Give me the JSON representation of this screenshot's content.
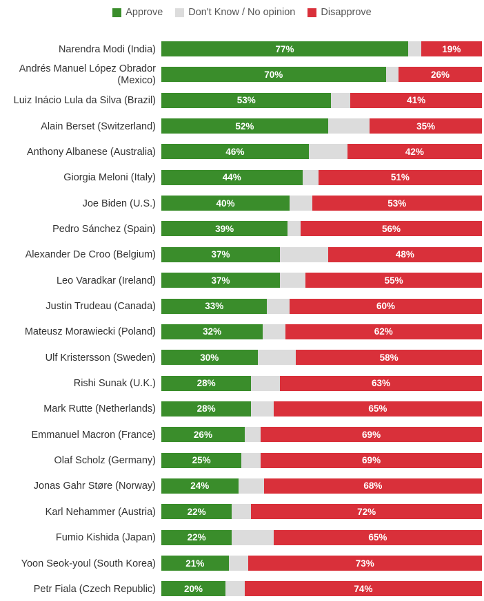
{
  "legend": [
    {
      "label": "Approve",
      "color": "#3a8d2b"
    },
    {
      "label": "Don't Know / No opinion",
      "color": "#dcdcdc"
    },
    {
      "label": "Disapprove",
      "color": "#d9303a"
    }
  ],
  "chart_data": {
    "type": "bar",
    "orientation": "horizontal",
    "stacked": true,
    "title": "",
    "xlabel": "",
    "ylabel": "",
    "xlim": [
      0,
      100
    ],
    "legend_position": "top-center",
    "categories": [
      "Narendra Modi (India)",
      "Andrés Manuel López Obrador (Mexico)",
      "Luiz Inácio Lula da Silva (Brazil)",
      "Alain Berset (Switzerland)",
      "Anthony Albanese (Australia)",
      "Giorgia Meloni (Italy)",
      "Joe Biden (U.S.)",
      "Pedro Sánchez (Spain)",
      "Alexander De Croo (Belgium)",
      "Leo Varadkar (Ireland)",
      "Justin Trudeau (Canada)",
      "Mateusz Morawiecki (Poland)",
      "Ulf Kristersson (Sweden)",
      "Rishi Sunak (U.K.)",
      "Mark Rutte (Netherlands)",
      "Emmanuel Macron (France)",
      "Olaf Scholz (Germany)",
      "Jonas Gahr Støre (Norway)",
      "Karl Nehammer (Austria)",
      "Fumio Kishida (Japan)",
      "Yoon Seok-youl (South Korea)",
      "Petr Fiala (Czech Republic)"
    ],
    "series": [
      {
        "name": "Approve",
        "color": "#3a8d2b",
        "values": [
          77,
          70,
          53,
          52,
          46,
          44,
          40,
          39,
          37,
          37,
          33,
          32,
          30,
          28,
          28,
          26,
          25,
          24,
          22,
          22,
          21,
          20
        ]
      },
      {
        "name": "Don't Know / No opinion",
        "color": "#dcdcdc",
        "values": [
          4,
          4,
          6,
          13,
          12,
          5,
          7,
          4,
          15,
          8,
          7,
          7,
          12,
          9,
          7,
          5,
          6,
          8,
          6,
          13,
          6,
          6
        ]
      },
      {
        "name": "Disapprove",
        "color": "#d9303a",
        "values": [
          19,
          26,
          41,
          35,
          42,
          51,
          53,
          56,
          48,
          55,
          60,
          62,
          58,
          63,
          65,
          69,
          69,
          68,
          72,
          65,
          73,
          74
        ]
      }
    ],
    "value_suffix": "%"
  }
}
